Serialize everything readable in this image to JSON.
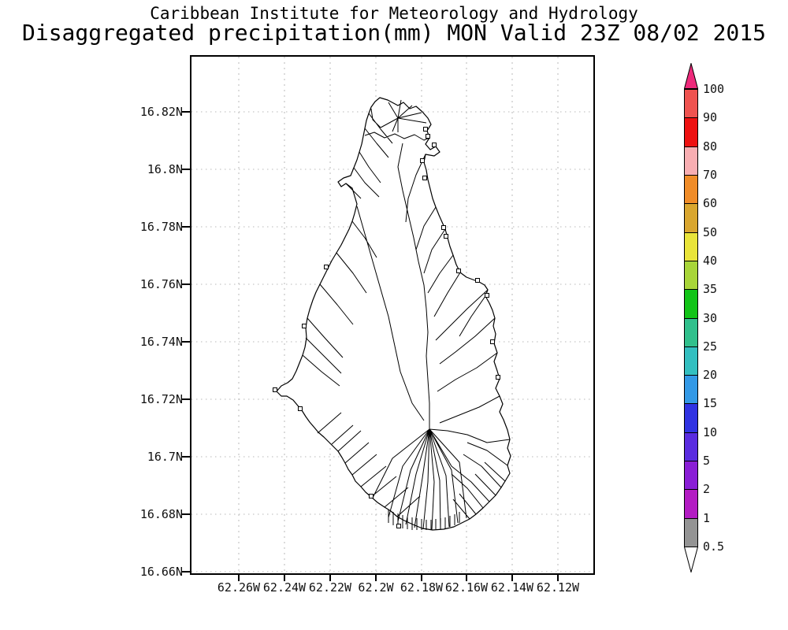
{
  "title": {
    "line1": "Caribbean Institute for Meteorology and Hydrology",
    "line2": "Disaggregated precipitation(mm) MON Valid 23Z 08/02 2015"
  },
  "map": {
    "y_axis_labels": [
      "16.82N",
      "16.8N",
      "16.78N",
      "16.76N",
      "16.74N",
      "16.72N",
      "16.7N",
      "16.68N",
      "16.66N"
    ],
    "x_axis_labels": [
      "62.26W",
      "62.24W",
      "62.22W",
      "62.2W",
      "62.18W",
      "62.16W",
      "62.14W",
      "62.12W"
    ]
  },
  "colorbar": {
    "tick_labels": [
      "100",
      "90",
      "80",
      "70",
      "60",
      "50",
      "40",
      "35",
      "30",
      "25",
      "20",
      "15",
      "10",
      "5",
      "2",
      "1",
      "0.5"
    ],
    "segment_colors": [
      "#ef5350",
      "#ee1111",
      "#f8aeb2",
      "#f08c28",
      "#d9a62f",
      "#e9e43a",
      "#a8d539",
      "#12c418",
      "#30c08c",
      "#33bfc0",
      "#3399e6",
      "#3033e2",
      "#5a2ce0",
      "#8a1ed6",
      "#b31cc3",
      "#949494"
    ],
    "arrow_top_color": "#ee2a7b",
    "arrow_bottom_color": "#ffffff",
    "line_color": "#000000"
  },
  "grid": {
    "line_color": "#b8b8b8"
  }
}
